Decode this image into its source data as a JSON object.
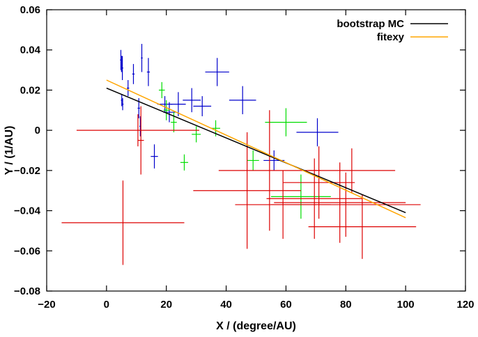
{
  "chart_data": {
    "type": "scatter",
    "title": "",
    "xlabel": "X / (degree/AU)",
    "ylabel": "Y / (1/AU)",
    "xlim": [
      -20,
      120
    ],
    "ylim": [
      -0.08,
      0.06
    ],
    "xticks": [
      -20,
      0,
      20,
      40,
      60,
      80,
      100,
      120
    ],
    "yticks": [
      -0.08,
      -0.06,
      -0.04,
      -0.02,
      0,
      0.02,
      0.04,
      0.06
    ],
    "xtick_labels": [
      "−20",
      "0",
      "20",
      "40",
      "60",
      "80",
      "100",
      "120"
    ],
    "ytick_labels": [
      "−0.08",
      "−0.06",
      "−0.04",
      "−0.02",
      "0",
      "0.02",
      "0.04",
      "0.06"
    ],
    "grid": false,
    "legend_position": "top-right",
    "lines": [
      {
        "name": "bootstrap MC",
        "color": "#000000",
        "x": [
          0,
          100
        ],
        "y": [
          0.021,
          -0.041
        ]
      },
      {
        "name": "fitexy",
        "color": "#ffa500",
        "x": [
          0,
          100
        ],
        "y": [
          0.025,
          -0.0435
        ]
      }
    ],
    "series": [
      {
        "color": "#0000cc",
        "points": [
          {
            "x": 4.8,
            "y": 0.035,
            "xerr": 0.3,
            "yerr": 0.005
          },
          {
            "x": 5.0,
            "y": 0.033,
            "xerr": 0.3,
            "yerr": 0.004
          },
          {
            "x": 5.3,
            "y": 0.031,
            "xerr": 0.3,
            "yerr": 0.006
          },
          {
            "x": 5.1,
            "y": 0.015,
            "xerr": 0.3,
            "yerr": 0.003
          },
          {
            "x": 5.4,
            "y": 0.013,
            "xerr": 0.3,
            "yerr": 0.003
          },
          {
            "x": 7.2,
            "y": 0.021,
            "xerr": 0.4,
            "yerr": 0.004
          },
          {
            "x": 9.0,
            "y": 0.028,
            "xerr": 0.4,
            "yerr": 0.005
          },
          {
            "x": 10.8,
            "y": 0.011,
            "xerr": 0.4,
            "yerr": 0.005
          },
          {
            "x": 11.3,
            "y": 0.002,
            "xerr": 0.3,
            "yerr": 0.005
          },
          {
            "x": 11.8,
            "y": 0.036,
            "xerr": 0.3,
            "yerr": 0.007
          },
          {
            "x": 14.0,
            "y": 0.029,
            "xerr": 0.5,
            "yerr": 0.007
          },
          {
            "x": 16.0,
            "y": -0.013,
            "xerr": 1.2,
            "yerr": 0.006
          },
          {
            "x": 19.5,
            "y": 0.013,
            "xerr": 2.5,
            "yerr": 0.004
          },
          {
            "x": 21.0,
            "y": 0.009,
            "xerr": 2.0,
            "yerr": 0.005
          },
          {
            "x": 24.0,
            "y": 0.013,
            "xerr": 2.5,
            "yerr": 0.006
          },
          {
            "x": 28.5,
            "y": 0.015,
            "xerr": 3.0,
            "yerr": 0.006
          },
          {
            "x": 32.0,
            "y": 0.012,
            "xerr": 3.0,
            "yerr": 0.005
          },
          {
            "x": 37.0,
            "y": 0.029,
            "xerr": 4.0,
            "yerr": 0.007
          },
          {
            "x": 45.5,
            "y": 0.015,
            "xerr": 4.5,
            "yerr": 0.007
          },
          {
            "x": 56.0,
            "y": -0.015,
            "xerr": 3.5,
            "yerr": 0.005
          },
          {
            "x": 70.5,
            "y": -0.001,
            "xerr": 7.0,
            "yerr": 0.007
          }
        ]
      },
      {
        "color": "#00dd00",
        "points": [
          {
            "x": 18.5,
            "y": 0.02,
            "xerr": 1.0,
            "yerr": 0.004
          },
          {
            "x": 20.0,
            "y": 0.01,
            "xerr": 1.0,
            "yerr": 0.005
          },
          {
            "x": 22.5,
            "y": 0.004,
            "xerr": 1.0,
            "yerr": 0.005
          },
          {
            "x": 26.0,
            "y": -0.016,
            "xerr": 1.3,
            "yerr": 0.004
          },
          {
            "x": 30.0,
            "y": -0.002,
            "xerr": 1.5,
            "yerr": 0.004
          },
          {
            "x": 36.5,
            "y": 0.001,
            "xerr": 1.5,
            "yerr": 0.004
          },
          {
            "x": 49.0,
            "y": -0.015,
            "xerr": 2.0,
            "yerr": 0.005
          },
          {
            "x": 60.0,
            "y": 0.004,
            "xerr": 7.0,
            "yerr": 0.007
          },
          {
            "x": 65.0,
            "y": -0.033,
            "xerr": 10.0,
            "yerr": 0.011
          }
        ]
      },
      {
        "color": "#dd0000",
        "points": [
          {
            "x": 5.5,
            "y": -0.046,
            "xerr": 20.5,
            "yerr": 0.021
          },
          {
            "x": 10.5,
            "y": 0.0,
            "xerr": 20.5,
            "yerr": 0.008
          },
          {
            "x": 11.5,
            "y": -0.005,
            "xerr": 1.0,
            "yerr": 0.017
          },
          {
            "x": 47.0,
            "y": -0.03,
            "xerr": 18.0,
            "yerr": 0.029
          },
          {
            "x": 54.5,
            "y": -0.02,
            "xerr": 17.0,
            "yerr": 0.03
          },
          {
            "x": 59.0,
            "y": -0.037,
            "xerr": 16.0,
            "yerr": 0.017
          },
          {
            "x": 69.5,
            "y": -0.034,
            "xerr": 16.0,
            "yerr": 0.02
          },
          {
            "x": 71.0,
            "y": -0.026,
            "xerr": 12.0,
            "yerr": 0.018
          },
          {
            "x": 78.0,
            "y": -0.036,
            "xerr": 22.0,
            "yerr": 0.02
          },
          {
            "x": 80.0,
            "y": -0.037,
            "xerr": 25.0,
            "yerr": 0.016
          },
          {
            "x": 82.0,
            "y": -0.02,
            "xerr": 14.5,
            "yerr": 0.011
          },
          {
            "x": 85.5,
            "y": -0.048,
            "xerr": 18.0,
            "yerr": 0.016
          }
        ]
      }
    ]
  }
}
